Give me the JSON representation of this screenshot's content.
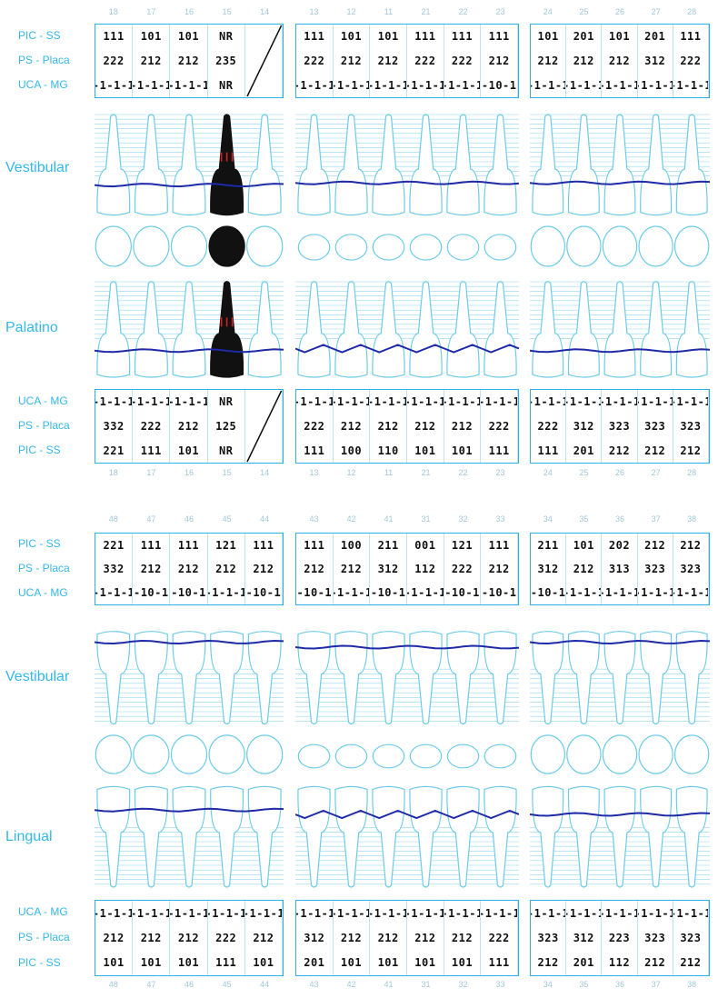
{
  "row_labels": {
    "pic": "PIC - SS",
    "ps": "PS - Placa",
    "uca": "UCA - MG"
  },
  "views": {
    "vestibular": "Vestibular",
    "palatino": "Palatino",
    "lingual": "Lingual"
  },
  "upper": {
    "tooth_numbers_top": {
      "right": [
        "18",
        "17",
        "16",
        "15",
        "14"
      ],
      "front": [
        "13",
        "12",
        "11",
        "21",
        "22",
        "23"
      ],
      "left": [
        "24",
        "25",
        "26",
        "27",
        "28"
      ]
    },
    "vestibular_table": {
      "right": {
        "pic": [
          "111",
          "101",
          "101",
          "NR",
          ""
        ],
        "ps": [
          "222",
          "212",
          "212",
          "235",
          ""
        ],
        "uca": [
          "-1-1-1",
          "-1-1-1",
          "-1-1-1",
          "NR",
          ""
        ]
      },
      "front": {
        "pic": [
          "111",
          "101",
          "101",
          "111",
          "111",
          "111"
        ],
        "ps": [
          "222",
          "212",
          "212",
          "222",
          "222",
          "212"
        ],
        "uca": [
          "-1-1-1",
          "-1-1-1",
          "-1-1-1",
          "-1-1-1",
          "-1-1-1",
          "-10-1"
        ]
      },
      "left": {
        "pic": [
          "101",
          "201",
          "101",
          "201",
          "111"
        ],
        "ps": [
          "212",
          "212",
          "212",
          "312",
          "222"
        ],
        "uca": [
          "-1-1-1",
          "-1-1-1",
          "-1-1-1",
          "-1-1-1",
          "-1-1-1"
        ]
      }
    },
    "palatino_table": {
      "right": {
        "uca": [
          "-1-1-1",
          "-1-1-1",
          "-1-1-1",
          "NR",
          ""
        ],
        "ps": [
          "332",
          "222",
          "212",
          "125",
          ""
        ],
        "pic": [
          "221",
          "111",
          "101",
          "NR",
          ""
        ]
      },
      "front": {
        "uca": [
          "-1-1-1",
          "-1-1-1",
          "-1-1-1",
          "-1-1-1",
          "-1-1-1",
          "-1-1-1"
        ],
        "ps": [
          "222",
          "212",
          "212",
          "212",
          "212",
          "222"
        ],
        "pic": [
          "111",
          "100",
          "110",
          "101",
          "101",
          "111"
        ]
      },
      "left": {
        "uca": [
          "-1-1-1",
          "-1-1-1",
          "-1-1-1",
          "-1-1-1",
          "-1-1-1"
        ],
        "ps": [
          "222",
          "312",
          "323",
          "323",
          "323"
        ],
        "pic": [
          "111",
          "201",
          "212",
          "212",
          "212"
        ]
      }
    },
    "tooth_numbers_bottom": {
      "right": [
        "18",
        "17",
        "16",
        "15",
        "14"
      ],
      "front": [
        "13",
        "12",
        "11",
        "21",
        "22",
        "23"
      ],
      "left": [
        "24",
        "25",
        "26",
        "27",
        "28"
      ]
    }
  },
  "lower": {
    "tooth_numbers_top": {
      "right": [
        "48",
        "47",
        "46",
        "45",
        "44"
      ],
      "front": [
        "43",
        "42",
        "41",
        "31",
        "32",
        "33"
      ],
      "left": [
        "34",
        "35",
        "36",
        "37",
        "38"
      ]
    },
    "vestibular_table": {
      "right": {
        "pic": [
          "221",
          "111",
          "111",
          "121",
          "111"
        ],
        "ps": [
          "332",
          "212",
          "212",
          "212",
          "212"
        ],
        "uca": [
          "-1-1-1",
          "-10-1",
          "-10-1",
          "-1-1-1",
          "-10-1"
        ]
      },
      "front": {
        "pic": [
          "111",
          "100",
          "211",
          "001",
          "121",
          "111"
        ],
        "ps": [
          "212",
          "212",
          "312",
          "112",
          "222",
          "212"
        ],
        "uca": [
          "-10-1",
          "-1-1-1",
          "-10-1",
          "-1-1-1",
          "-10-1",
          "-10-1"
        ]
      },
      "left": {
        "pic": [
          "211",
          "101",
          "202",
          "212",
          "212"
        ],
        "ps": [
          "312",
          "212",
          "313",
          "323",
          "323"
        ],
        "uca": [
          "-10-1",
          "-1-1-1",
          "-1-1-1",
          "-1-1-1",
          "-1-1-1"
        ]
      }
    },
    "lingual_table": {
      "right": {
        "uca": [
          "-1-1-1",
          "-1-1-1",
          "-1-1-1",
          "-1-1-1",
          "-1-1-1"
        ],
        "ps": [
          "212",
          "212",
          "212",
          "222",
          "212"
        ],
        "pic": [
          "101",
          "101",
          "101",
          "111",
          "101"
        ]
      },
      "front": {
        "uca": [
          "-1-1-1",
          "-1-1-1",
          "-1-1-1",
          "-1-1-1",
          "-1-1-1",
          "-1-1-1"
        ],
        "ps": [
          "312",
          "212",
          "212",
          "212",
          "212",
          "222"
        ],
        "pic": [
          "201",
          "101",
          "101",
          "101",
          "101",
          "111"
        ]
      },
      "left": {
        "uca": [
          "-1-1-1",
          "-1-1-1",
          "-1-1-1",
          "-1-1-1",
          "-1-1-1"
        ],
        "ps": [
          "323",
          "312",
          "223",
          "323",
          "323"
        ],
        "pic": [
          "212",
          "201",
          "112",
          "212",
          "212"
        ]
      }
    },
    "tooth_numbers_bottom": {
      "right": [
        "48",
        "47",
        "46",
        "45",
        "44"
      ],
      "front": [
        "43",
        "42",
        "41",
        "31",
        "32",
        "33"
      ],
      "left": [
        "34",
        "35",
        "36",
        "37",
        "38"
      ]
    }
  },
  "colors": {
    "grid_border": "#29b3e8",
    "label": "#35b8e8",
    "tooth_outline": "#6ccbe8",
    "gum_line": "#1e2aa8",
    "missing_tooth": "#111111",
    "bleeding_mark": "#d42020"
  },
  "icons": {
    "missing_tooth": "missing-tooth-icon",
    "tooth": "tooth-outline-icon"
  }
}
